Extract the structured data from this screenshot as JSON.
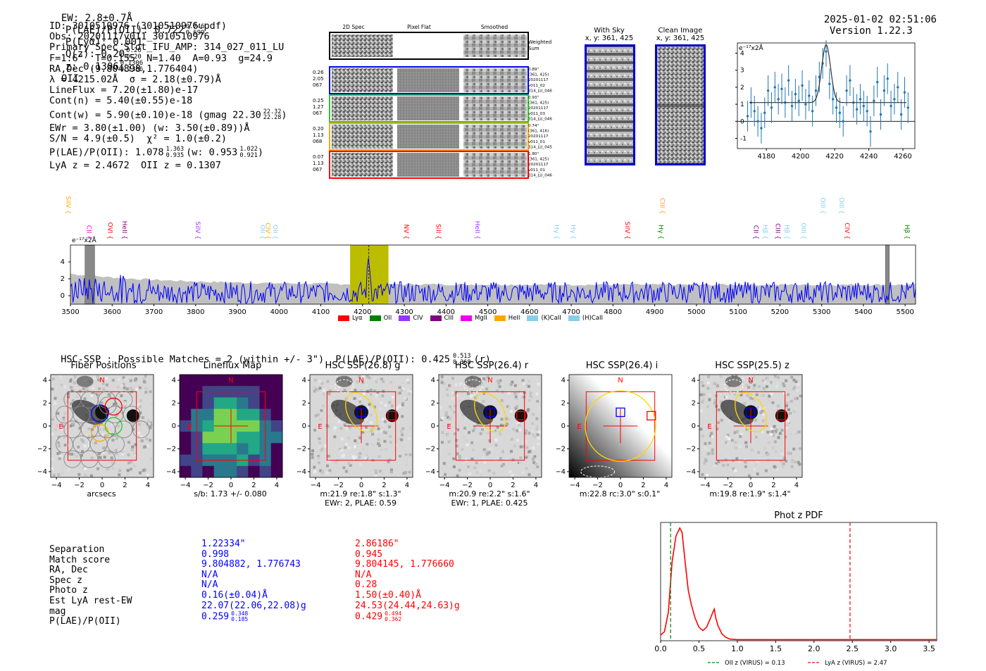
{
  "header": {
    "ew_line": "EW: 2.8±0.7Å  P(LAE)/P(OII): 0.722 0.746/0.699  P(Lyα): 0.001  Q(z): 0.20 0.20/0.20  z: 0.1306 0.1306/0.1306 OII",
    "ew": "EW: 2.8±0.7Å",
    "plae": "P(LAE)/P(OII): 0.722",
    "plae_hi": "0.746",
    "plae_lo": "0.699",
    "plya": "P(Lyα): 0.001",
    "qz": "Q(z): 0.20",
    "qz_hi": "0.20",
    "qz_lo": "0.20",
    "z": "z: 0.1306",
    "z_hi": "0.1306",
    "z_lo": "0.1306",
    "z_line": "OII",
    "timestamp": "2025-01-02 02:51:06",
    "version": "Version 1.22.3"
  },
  "info": {
    "id": "ID: 3010510976 (3010510976.pdf)",
    "obs": "Obs: 20201117v011_3010510976",
    "primary": "Primary Spec_Slot_IFU_AMP: 314_027_011_LU",
    "fit": "F=1.6\"  T=0.155  N=1.40  A=0.93  g=24.9",
    "radec": "RA,Dec (9.804898,1.776404)",
    "lambda": "λ = 4215.02Å  σ = 2.18(±0.79)Å",
    "lineflux": "LineFlux = 7.20(±1.80)e-17",
    "contn": "Cont(n) = 5.40(±0.55)e-18",
    "contw": "Cont(w) = 5.90(±0.10)e-18 (gmag 22.30",
    "contw_hi": "22.32",
    "contw_lo": "22.28",
    "ewr": "EWr = 3.80(±1.00) (w: 3.50(±0.89))Å",
    "sn": "S/N = 4.9(±0.5)  χ² = 1.0(±0.2)",
    "plae": "P(LAE)/P(OII): 1.078",
    "plae_hi": "1.363",
    "plae_lo": "0.935",
    "plae_w": "(w: 0.953",
    "plae_w_hi": "1.022",
    "plae_w_lo": "0.921",
    "lya": "LyA z = 2.4672  OII z = 0.1307"
  },
  "spec2d": {
    "col_titles": [
      "2D Spec",
      "Pixel Flat",
      "Smoothed"
    ],
    "weighted_label": "Weighted\nSum",
    "rows": [
      {
        "left": [
          "0.26",
          "2.05",
          "067"
        ],
        "right": [
          "0.89\"",
          "(361, 425)",
          "20201117",
          "v011_02",
          "314_LU_046"
        ],
        "color": "#0000ff"
      },
      {
        "left": [
          "0.25",
          "1.27",
          "067"
        ],
        "right": [
          "0.93\"",
          "(361, 425)",
          "20201117",
          "v011_03",
          "314_LU_046"
        ],
        "color": "#22cc22"
      },
      {
        "left": [
          "0.20",
          "1.13",
          "068"
        ],
        "right": [
          "0.74\"",
          "(361, 416)",
          "20201117",
          "v011_01",
          "314_LU_045"
        ],
        "color": "#ffa500"
      },
      {
        "left": [
          "0.07",
          "1.13",
          "067"
        ],
        "right": [
          "1.80\"",
          "(361, 425)",
          "20201117",
          "v011_01",
          "314_LU_046"
        ],
        "color": "#ff0000"
      }
    ]
  },
  "cutouts_top": {
    "with_sky": "With Sky",
    "with_sky_xy": "x, y: 361, 425",
    "clean": "Clean Image",
    "clean_xy": "x, y: 361, 425"
  },
  "zoom_chart": {
    "ylabel": "e⁻¹⁷x2Å",
    "xticks": [
      "4180",
      "4200",
      "4220",
      "4240",
      "4260"
    ],
    "yticks": [
      "-1",
      "0",
      "1",
      "2",
      "3",
      "4"
    ]
  },
  "line_labels": [
    {
      "name": "CII",
      "wl": 3540,
      "color": "#ee00ee",
      "tier": 2
    },
    {
      "name": "SiIV",
      "wl": 3490,
      "color": "#ffa500",
      "tier": 0
    },
    {
      "name": "OVI",
      "wl": 3590,
      "color": "#ff0000",
      "tier": 2
    },
    {
      "name": "HeII",
      "wl": 3625,
      "color": "#800080",
      "tier": 2
    },
    {
      "name": "SiIV",
      "wl": 3800,
      "color": "#9933ff",
      "tier": 2
    },
    {
      "name": "OII",
      "wl": 3956,
      "color": "#87ceeb",
      "tier": 2
    },
    {
      "name": "CIV",
      "wl": 3968,
      "color": "#ffa500",
      "tier": 2
    },
    {
      "name": "OII",
      "wl": 3986,
      "color": "#87ceeb",
      "tier": 2
    },
    {
      "name": "NV",
      "wl": 4300,
      "color": "#ff0000",
      "tier": 2
    },
    {
      "name": "SiII",
      "wl": 4377,
      "color": "#ff0000",
      "tier": 2
    },
    {
      "name": "HeII",
      "wl": 4470,
      "color": "#9933ff",
      "tier": 2
    },
    {
      "name": "Hγ",
      "wl": 4660,
      "color": "#87ceeb",
      "tier": 2
    },
    {
      "name": "Hγ",
      "wl": 4700,
      "color": "#87ceeb",
      "tier": 2
    },
    {
      "name": "SiIV",
      "wl": 4830,
      "color": "#ff0000",
      "tier": 2
    },
    {
      "name": "CIII",
      "wl": 4913,
      "color": "#ffa500",
      "tier": 0
    },
    {
      "name": "Hγ",
      "wl": 4910,
      "color": "#008000",
      "tier": 2
    },
    {
      "name": "CII",
      "wl": 5138,
      "color": "#800080",
      "tier": 2
    },
    {
      "name": "Hβ",
      "wl": 5160,
      "color": "#87ceeb",
      "tier": 2
    },
    {
      "name": "CIII",
      "wl": 5190,
      "color": "#800080",
      "tier": 2
    },
    {
      "name": "Hβ",
      "wl": 5212,
      "color": "#87ceeb",
      "tier": 2
    },
    {
      "name": "OIII",
      "wl": 5252,
      "color": "#87ceeb",
      "tier": 2
    },
    {
      "name": "OIII",
      "wl": 5298,
      "color": "#87ceeb",
      "tier": 0
    },
    {
      "name": "OIII",
      "wl": 5343,
      "color": "#87ceeb",
      "tier": 0
    },
    {
      "name": "CIV",
      "wl": 5356,
      "color": "#ff0000",
      "tier": 2
    },
    {
      "name": "Hβ",
      "wl": 5500,
      "color": "#008000",
      "tier": 2
    }
  ],
  "legend": [
    {
      "label": "Lyα",
      "color": "#ff0000"
    },
    {
      "label": "OII",
      "color": "#008000"
    },
    {
      "label": "CIV",
      "color": "#9933ff"
    },
    {
      "label": "CIII",
      "color": "#800080"
    },
    {
      "label": "MgII",
      "color": "#ee00ee"
    },
    {
      "label": "HeII",
      "color": "#ffa500"
    },
    {
      "label": "(K)CaII",
      "color": "#87ceeb"
    },
    {
      "label": "(H)CaII",
      "color": "#87ceeb"
    }
  ],
  "hsc": {
    "title_line": "HSC-SSP : Possible Matches = 2 (within +/- 3\")  P(LAE)/P(OII): 0.425",
    "title_hi": "0.513",
    "title_lo": "0.368",
    "title_band": "(r)",
    "panels": [
      {
        "title": "Fiber Positions",
        "caption1": "arcsecs",
        "caption2": ""
      },
      {
        "title": "Lineflux Map",
        "caption1": "s/b: 1.73 +/- 0.080",
        "caption2": ""
      },
      {
        "title": "HSC SSP(26.8) g",
        "caption1": "m:21.9  re:1.8\"  s:1.3\"",
        "caption2": "EWr: 2, PLAE: 0.59"
      },
      {
        "title": "HSC SSP(26.4) r",
        "caption1": "m:20.9  re:2.2\"  s:1.6\"",
        "caption2": "EWr: 1, PLAE: 0.425"
      },
      {
        "title": "HSC SSP(26.4) i",
        "caption1": "m:22.8 rc:3.0\"  s:0.1\"",
        "caption2": ""
      },
      {
        "title": "HSC SSP(25.5) z",
        "caption1": "m:19.8  re:1.9\"  s:1.4\"",
        "caption2": ""
      }
    ],
    "axis_ticks": [
      "−4",
      "−2",
      "0",
      "2",
      "4"
    ],
    "compass_n": "N",
    "compass_e": "E"
  },
  "match_table": {
    "labels": [
      "Separation",
      "Match score",
      "RA, Dec",
      "Spec z",
      "Photo z",
      "Est LyA rest-EW",
      "mag",
      "P(LAE)/P(OII)"
    ],
    "col1": [
      "1.22334\"",
      "0.998",
      "9.804882, 1.776743",
      "N/A",
      "N/A",
      "0.16(±0.04)Å",
      "22.07(22.06,22.08)g",
      "0.259"
    ],
    "col1_plae_hi": "0.348",
    "col1_plae_lo": "0.185",
    "col2": [
      "2.86186\"",
      "0.945",
      "9.804145, 1.776660",
      "N/A",
      "0.28",
      "1.50(±0.40)Å",
      "24.53(24.44,24.63)g",
      "0.429"
    ],
    "col2_plae_hi": "0.494",
    "col2_plae_lo": "0.362"
  },
  "chart_data": [
    {
      "type": "line",
      "title": "",
      "ylabel": "e⁻¹⁷x2Å",
      "xlabel": "",
      "xlim": [
        3500,
        5525
      ],
      "ylim": [
        -1,
        6
      ],
      "xticks": [
        3500,
        3600,
        3700,
        3800,
        3900,
        4000,
        4100,
        4200,
        4300,
        4400,
        4500,
        4600,
        4700,
        4800,
        4900,
        5000,
        5100,
        5200,
        5300,
        5400,
        5500
      ],
      "yticks": [
        0,
        2,
        4
      ],
      "highlight_window": [
        4170,
        4262
      ],
      "line_center": 4215.02,
      "masked_regions": [
        [
          3535,
          3558
        ],
        [
          5453,
          5462
        ]
      ],
      "series": [
        {
          "name": "flux",
          "color": "#0000ff",
          "description": "noisy continuum ~0.5 with peak ~4.7 at 4215"
        },
        {
          "name": "error",
          "color": "#c0c0c0",
          "description": "grey band ~2.5 at blue end falling to ~1.3"
        }
      ]
    },
    {
      "type": "scatter",
      "title": "",
      "ylabel": "e⁻¹⁷x2Å",
      "xlim": [
        4163,
        4267
      ],
      "ylim": [
        -1.6,
        4.6
      ],
      "x": [
        4169,
        4171,
        4173,
        4175,
        4177,
        4179,
        4181,
        4183,
        4185,
        4187,
        4189,
        4191,
        4193,
        4195,
        4197,
        4199,
        4201,
        4203,
        4205,
        4207,
        4209,
        4211,
        4213,
        4215,
        4217,
        4219,
        4221,
        4223,
        4225,
        4227,
        4229,
        4231,
        4233,
        4235,
        4237,
        4239,
        4241,
        4243,
        4245,
        4247,
        4249,
        4251,
        4253,
        4255,
        4257,
        4259,
        4261,
        4263
      ],
      "y": [
        0.3,
        1.1,
        0.6,
        0.0,
        -0.4,
        0.5,
        1.8,
        0.8,
        2.0,
        1.3,
        1.9,
        1.1,
        2.4,
        0.9,
        1.6,
        1.2,
        2.1,
        1.0,
        1.5,
        0.6,
        1.8,
        2.6,
        3.4,
        4.1,
        2.2,
        1.3,
        0.8,
        0.5,
        0.0,
        1.8,
        2.4,
        1.1,
        0.7,
        1.3,
        0.9,
        0.6,
        -0.6,
        1.2,
        2.3,
        0.4,
        1.8,
        2.5,
        0.9,
        1.3,
        2.0,
        0.4,
        1.7,
        0.8
      ],
      "yerr": 0.9,
      "fit": {
        "continuum": 1.1,
        "amplitude": 3.4,
        "center": 4215.0,
        "sigma": 2.6
      },
      "xticks": [
        4180,
        4200,
        4220,
        4240,
        4260
      ],
      "yticks": [
        -1,
        0,
        1,
        2,
        3,
        4
      ]
    },
    {
      "type": "line",
      "title": "Phot z PDF",
      "xlim": [
        0,
        3.6
      ],
      "xticks": [
        0.0,
        0.5,
        1.0,
        1.5,
        2.0,
        2.5,
        3.0,
        3.5
      ],
      "x": [
        0.0,
        0.05,
        0.1,
        0.15,
        0.2,
        0.25,
        0.28,
        0.32,
        0.36,
        0.4,
        0.45,
        0.5,
        0.55,
        0.6,
        0.65,
        0.68,
        0.7,
        0.72,
        0.75,
        0.8,
        0.85,
        0.9,
        1.0,
        1.2,
        1.5,
        2.0,
        2.5,
        3.0,
        3.6
      ],
      "y": [
        0.05,
        0.08,
        0.25,
        0.7,
        0.93,
        1.0,
        0.96,
        0.7,
        0.45,
        0.32,
        0.2,
        0.12,
        0.09,
        0.12,
        0.2,
        0.25,
        0.28,
        0.2,
        0.13,
        0.06,
        0.03,
        0.015,
        0.01,
        0.01,
        0.01,
        0.01,
        0.01,
        0.01,
        0.01
      ],
      "vlines": [
        {
          "x": 0.13,
          "label": "OII z (VIRUS) = 0.13",
          "color": "#008000",
          "style": "dashed"
        },
        {
          "x": 2.47,
          "label": "LyA z (VIRUS) = 2.47",
          "color": "#ff0000",
          "style": "dashed"
        }
      ]
    }
  ]
}
